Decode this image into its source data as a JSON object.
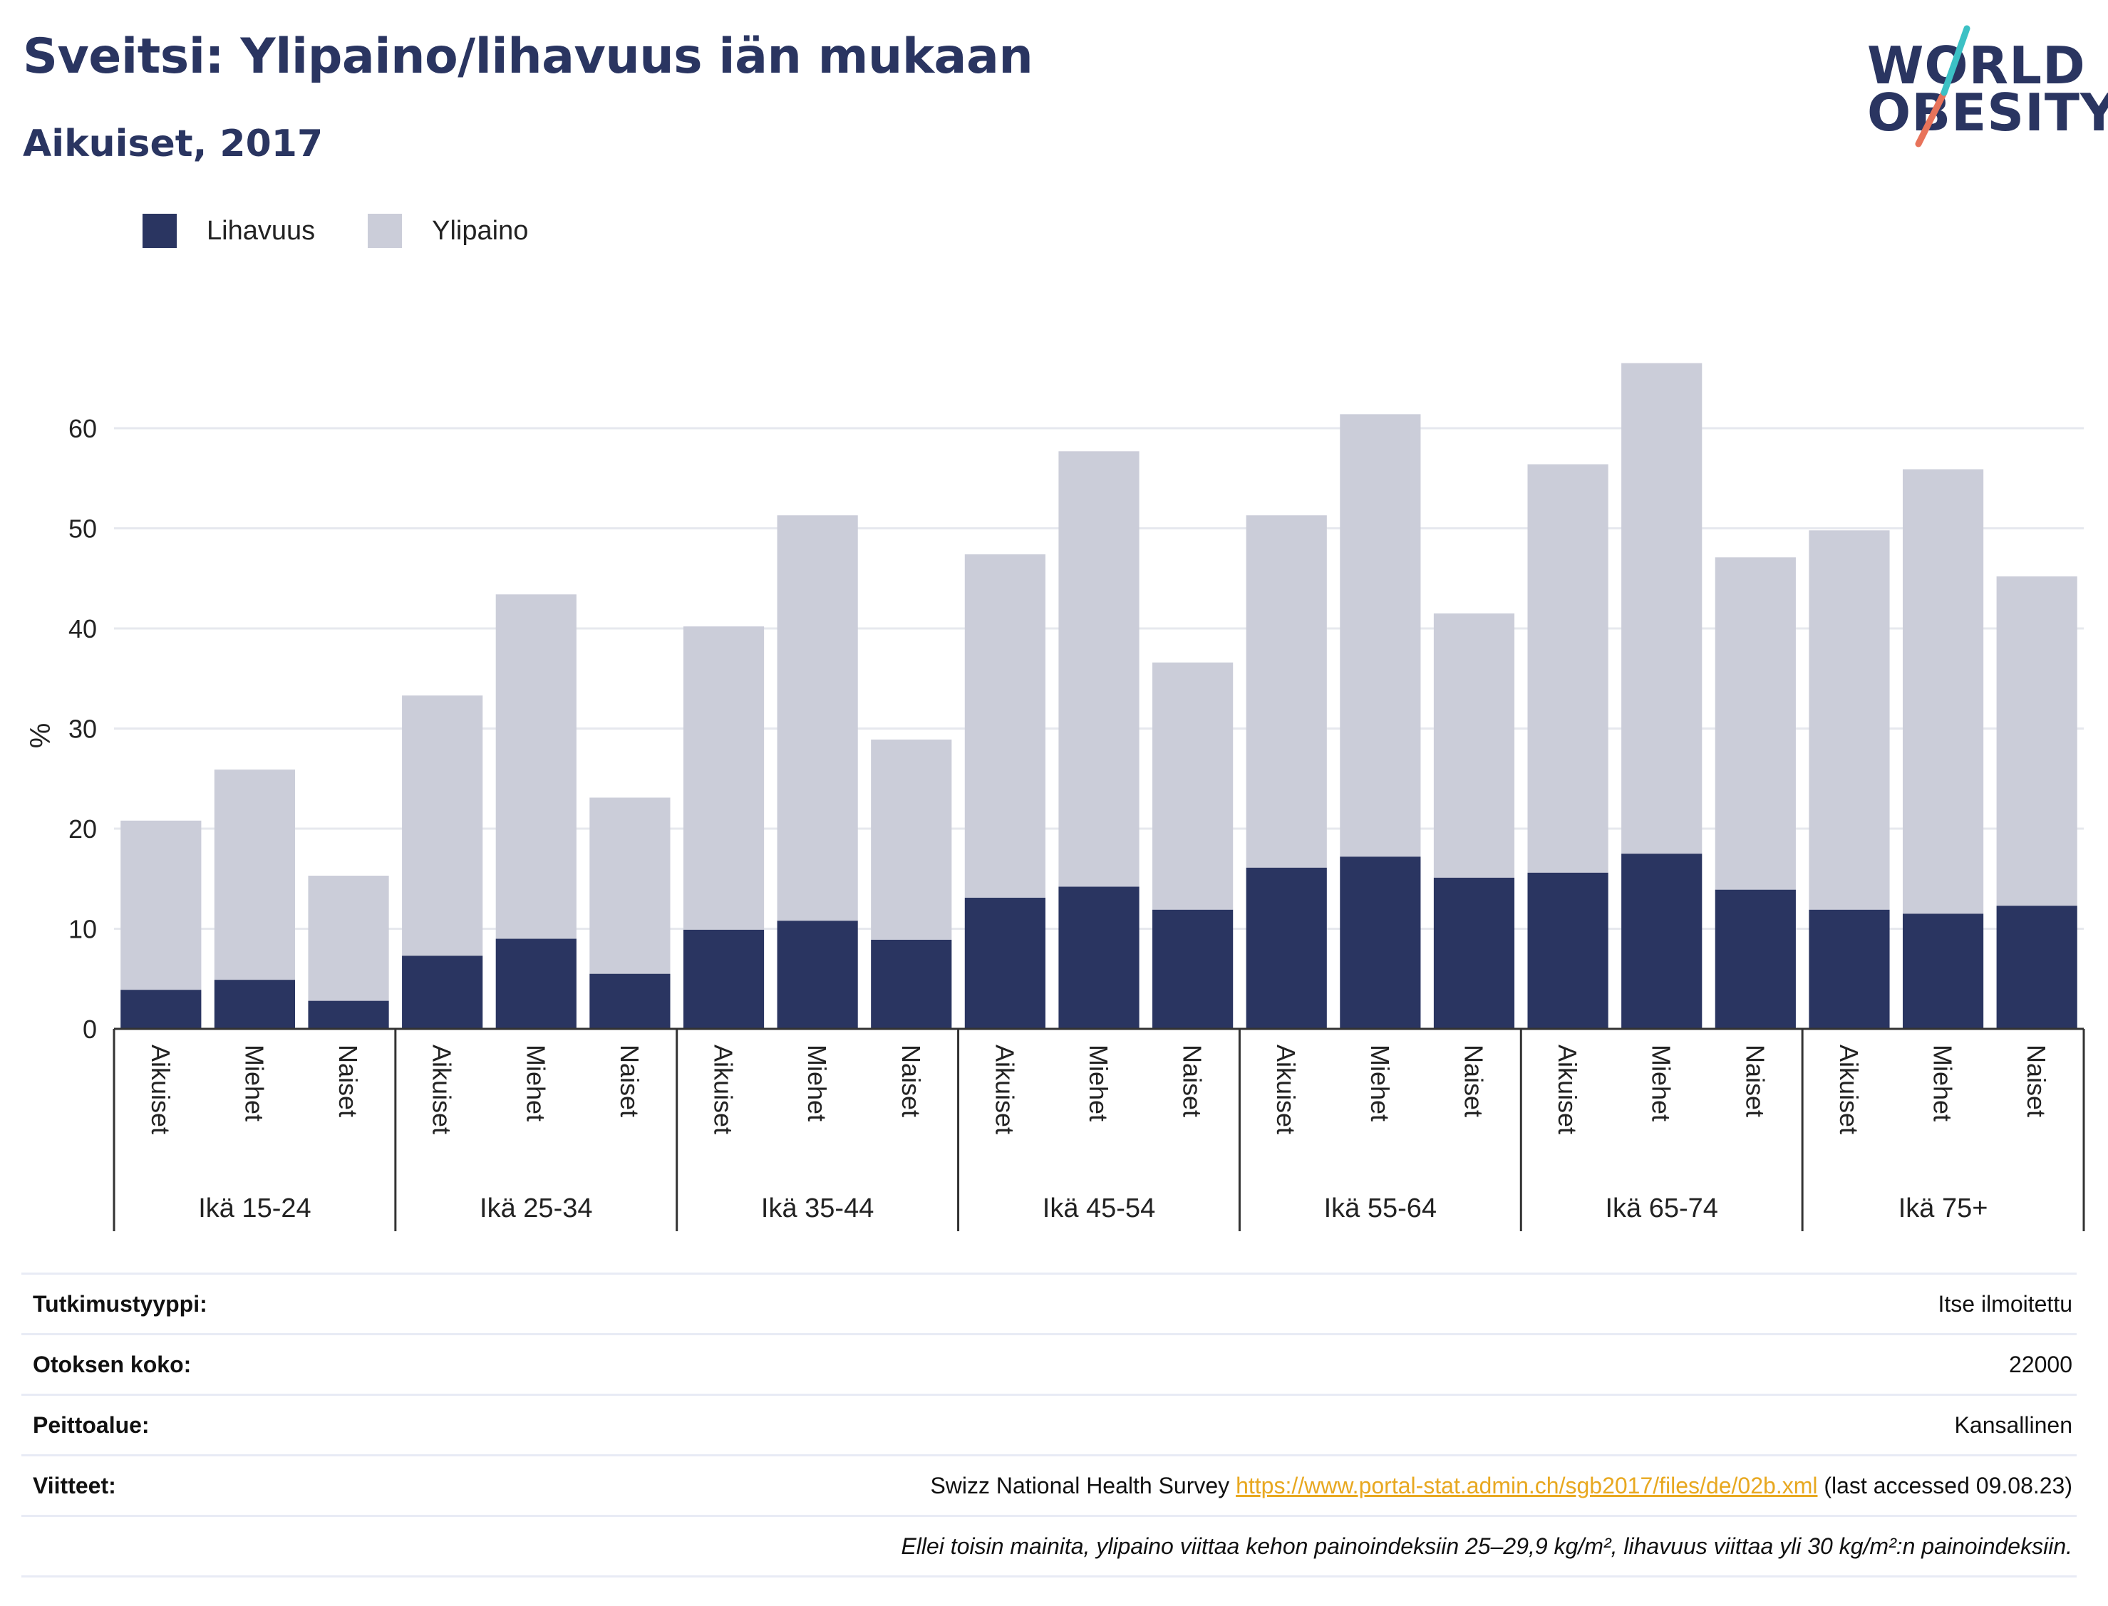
{
  "title": "Sveitsi: Ylipaino/lihavuus iän mukaan",
  "subtitle": "Aikuiset, 2017",
  "logo": {
    "line1": "WORLD",
    "line2": "OBESITY"
  },
  "colors": {
    "obesity": "#2a3561",
    "overweight": "#cbcdd9",
    "grid": "#e6e8ee",
    "axis": "#333333"
  },
  "legend": [
    {
      "label": "Lihavuus",
      "color": "#2a3561"
    },
    {
      "label": "Ylipaino",
      "color": "#cbcdd9"
    }
  ],
  "chart_data": {
    "type": "bar",
    "stacked": true,
    "ylabel": "%",
    "ylim": [
      0,
      70
    ],
    "yticks": [
      0,
      10,
      20,
      30,
      40,
      50,
      60
    ],
    "groups": [
      "Ikä 15-24",
      "Ikä 25-34",
      "Ikä 35-44",
      "Ikä 45-54",
      "Ikä 55-64",
      "Ikä 65-74",
      "Ikä 75+"
    ],
    "subcategories": [
      "Aikuiset",
      "Miehet",
      "Naiset"
    ],
    "series": [
      {
        "name": "Lihavuus",
        "values": [
          3.9,
          4.9,
          2.8,
          7.3,
          9.0,
          5.5,
          9.9,
          10.8,
          8.9,
          13.1,
          14.2,
          11.9,
          16.1,
          17.2,
          15.1,
          15.6,
          17.5,
          13.9,
          11.9,
          11.5,
          12.3
        ]
      },
      {
        "name": "Ylipaino",
        "values": [
          16.9,
          21.0,
          12.5,
          26.0,
          34.4,
          17.6,
          30.3,
          40.5,
          20.0,
          34.3,
          43.5,
          24.7,
          35.2,
          44.2,
          26.4,
          40.8,
          49.0,
          33.2,
          37.9,
          44.4,
          32.9
        ]
      }
    ],
    "grid": true,
    "legend_position": "top-left"
  },
  "meta": [
    {
      "key": "Tutkimustyyppi:",
      "value": "Itse ilmoitettu"
    },
    {
      "key": "Otoksen koko:",
      "value": "22000"
    },
    {
      "key": "Peittoalue:",
      "value": "Kansallinen"
    },
    {
      "key": "Viitteet:",
      "value_pre": "Swizz National Health Survey ",
      "link": "https://www.portal-stat.admin.ch/sgb2017/files/de/02b.xml",
      "value_post": " (last accessed 09.08.23)"
    }
  ],
  "footnote": "Ellei toisin mainita, ylipaino viittaa kehon painoindeksiin 25–29,9 kg/m², lihavuus viittaa yli 30 kg/m²:n painoindeksiin."
}
